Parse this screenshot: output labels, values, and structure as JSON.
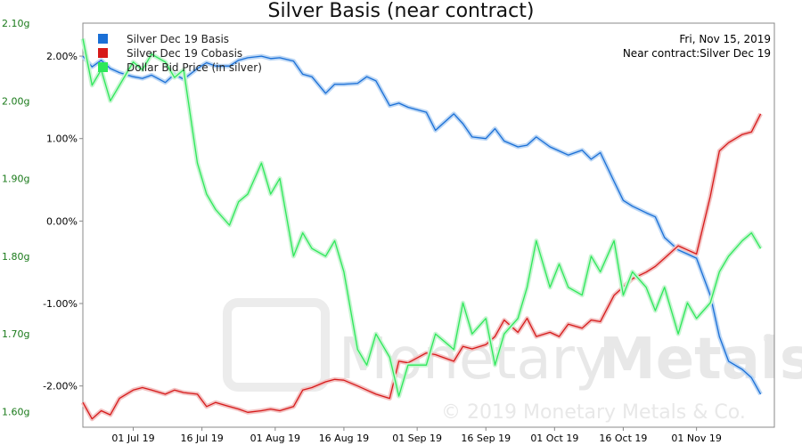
{
  "chart_data": {
    "type": "line",
    "title": "Silver Basis (near contract)",
    "annotation": [
      "Fri, Nov 15, 2019",
      "Near contract:Silver Dec 19"
    ],
    "watermark": {
      "brand": "MonetaryMetals",
      "brand_part1": "Monetary",
      "brand_part2": "Metals",
      "copyright": "© 2019 Monetary Metals & Co.",
      "registered": "®"
    },
    "x_axis": {
      "type": "date",
      "range": [
        "2019-06-20",
        "2019-11-18"
      ],
      "tick_labels": [
        "01 Jul 19",
        "16 Jul 19",
        "01 Aug 19",
        "16 Aug 19",
        "01 Sep 19",
        "16 Sep 19",
        "01 Oct 19",
        "16 Oct 19",
        "01 Nov 19"
      ],
      "tick_dates": [
        "2019-07-01",
        "2019-07-16",
        "2019-08-01",
        "2019-08-16",
        "2019-09-01",
        "2019-09-16",
        "2019-10-01",
        "2019-10-16",
        "2019-11-01"
      ]
    },
    "y_left": {
      "range": [
        -2.5,
        2.4
      ],
      "ticks": [
        2.0,
        1.0,
        0.0,
        -1.0,
        -2.0
      ],
      "tick_labels": [
        "2.00%",
        "1.00%",
        "0.00%",
        "-1.00%",
        "-2.00%"
      ]
    },
    "y_right": {
      "range": [
        1.58,
        2.1
      ],
      "ticks": [
        2.1,
        2.0,
        1.9,
        1.8,
        1.7,
        1.6
      ],
      "tick_labels": [
        "2.10g",
        "2.00g",
        "1.90g",
        "1.80g",
        "1.70g",
        "1.60g"
      ]
    },
    "grid": false,
    "legend_position": "top-left",
    "series": [
      {
        "name": "Silver Dec 19 Basis",
        "color": "#1a6fd6",
        "axis": "left",
        "x": [
          "2019-06-20",
          "2019-06-22",
          "2019-06-24",
          "2019-06-26",
          "2019-06-28",
          "2019-07-01",
          "2019-07-03",
          "2019-07-05",
          "2019-07-08",
          "2019-07-10",
          "2019-07-12",
          "2019-07-15",
          "2019-07-17",
          "2019-07-19",
          "2019-07-22",
          "2019-07-24",
          "2019-07-26",
          "2019-07-29",
          "2019-07-31",
          "2019-08-02",
          "2019-08-05",
          "2019-08-07",
          "2019-08-09",
          "2019-08-12",
          "2019-08-14",
          "2019-08-16",
          "2019-08-19",
          "2019-08-21",
          "2019-08-23",
          "2019-08-26",
          "2019-08-28",
          "2019-08-30",
          "2019-09-03",
          "2019-09-05",
          "2019-09-09",
          "2019-09-11",
          "2019-09-13",
          "2019-09-16",
          "2019-09-18",
          "2019-09-20",
          "2019-09-23",
          "2019-09-25",
          "2019-09-27",
          "2019-09-30",
          "2019-10-02",
          "2019-10-04",
          "2019-10-07",
          "2019-10-09",
          "2019-10-11",
          "2019-10-14",
          "2019-10-16",
          "2019-10-18",
          "2019-10-21",
          "2019-10-23",
          "2019-10-25",
          "2019-10-28",
          "2019-10-30",
          "2019-11-01",
          "2019-11-04",
          "2019-11-06",
          "2019-11-08",
          "2019-11-11",
          "2019-11-13",
          "2019-11-15"
        ],
        "values": [
          2.0,
          1.87,
          1.95,
          1.85,
          1.8,
          1.75,
          1.73,
          1.77,
          1.68,
          1.78,
          1.72,
          1.85,
          1.92,
          1.88,
          1.88,
          1.95,
          1.98,
          2.0,
          1.97,
          1.98,
          1.94,
          1.78,
          1.75,
          1.55,
          1.66,
          1.66,
          1.67,
          1.75,
          1.7,
          1.4,
          1.43,
          1.38,
          1.32,
          1.1,
          1.3,
          1.18,
          1.02,
          1.0,
          1.12,
          0.97,
          0.9,
          0.92,
          1.02,
          0.9,
          0.85,
          0.8,
          0.86,
          0.75,
          0.83,
          0.48,
          0.25,
          0.18,
          0.1,
          0.05,
          -0.2,
          -0.35,
          -0.4,
          -0.45,
          -0.9,
          -1.4,
          -1.7,
          -1.8,
          -1.9,
          -2.1
        ]
      },
      {
        "name": "Silver Dec 19 Cobasis",
        "color": "#d61a1a",
        "axis": "left",
        "x": [
          "2019-06-20",
          "2019-06-22",
          "2019-06-24",
          "2019-06-26",
          "2019-06-28",
          "2019-07-01",
          "2019-07-03",
          "2019-07-05",
          "2019-07-08",
          "2019-07-10",
          "2019-07-12",
          "2019-07-15",
          "2019-07-17",
          "2019-07-19",
          "2019-07-22",
          "2019-07-24",
          "2019-07-26",
          "2019-07-29",
          "2019-07-31",
          "2019-08-02",
          "2019-08-05",
          "2019-08-07",
          "2019-08-09",
          "2019-08-12",
          "2019-08-14",
          "2019-08-16",
          "2019-08-19",
          "2019-08-21",
          "2019-08-23",
          "2019-08-26",
          "2019-08-28",
          "2019-08-30",
          "2019-09-03",
          "2019-09-05",
          "2019-09-09",
          "2019-09-11",
          "2019-09-13",
          "2019-09-16",
          "2019-09-18",
          "2019-09-20",
          "2019-09-23",
          "2019-09-25",
          "2019-09-27",
          "2019-09-30",
          "2019-10-02",
          "2019-10-04",
          "2019-10-07",
          "2019-10-09",
          "2019-10-11",
          "2019-10-14",
          "2019-10-16",
          "2019-10-18",
          "2019-10-21",
          "2019-10-23",
          "2019-10-25",
          "2019-10-28",
          "2019-10-30",
          "2019-11-01",
          "2019-11-04",
          "2019-11-06",
          "2019-11-08",
          "2019-11-11",
          "2019-11-13",
          "2019-11-15"
        ],
        "values": [
          -2.2,
          -2.4,
          -2.3,
          -2.35,
          -2.15,
          -2.05,
          -2.02,
          -2.05,
          -2.1,
          -2.05,
          -2.08,
          -2.1,
          -2.25,
          -2.2,
          -2.25,
          -2.28,
          -2.32,
          -2.3,
          -2.28,
          -2.3,
          -2.25,
          -2.05,
          -2.02,
          -1.95,
          -1.92,
          -1.93,
          -2.0,
          -2.05,
          -2.1,
          -2.15,
          -1.7,
          -1.72,
          -1.6,
          -1.62,
          -1.7,
          -1.52,
          -1.55,
          -1.5,
          -1.4,
          -1.2,
          -1.35,
          -1.18,
          -1.4,
          -1.35,
          -1.4,
          -1.25,
          -1.3,
          -1.2,
          -1.22,
          -0.9,
          -0.8,
          -0.7,
          -0.62,
          -0.55,
          -0.45,
          -0.3,
          -0.35,
          -0.4,
          0.3,
          0.85,
          0.95,
          1.05,
          1.08,
          1.3
        ]
      },
      {
        "name": "Dollar Bid Price (in silver)",
        "color": "#2ee85a",
        "axis": "right",
        "x": [
          "2019-06-20",
          "2019-06-22",
          "2019-06-24",
          "2019-06-26",
          "2019-06-28",
          "2019-07-01",
          "2019-07-03",
          "2019-07-05",
          "2019-07-08",
          "2019-07-10",
          "2019-07-12",
          "2019-07-15",
          "2019-07-17",
          "2019-07-19",
          "2019-07-22",
          "2019-07-24",
          "2019-07-26",
          "2019-07-29",
          "2019-07-31",
          "2019-08-02",
          "2019-08-05",
          "2019-08-07",
          "2019-08-09",
          "2019-08-12",
          "2019-08-14",
          "2019-08-16",
          "2019-08-19",
          "2019-08-21",
          "2019-08-23",
          "2019-08-26",
          "2019-08-28",
          "2019-08-30",
          "2019-09-03",
          "2019-09-05",
          "2019-09-09",
          "2019-09-11",
          "2019-09-13",
          "2019-09-16",
          "2019-09-18",
          "2019-09-20",
          "2019-09-23",
          "2019-09-25",
          "2019-09-27",
          "2019-09-30",
          "2019-10-02",
          "2019-10-04",
          "2019-10-07",
          "2019-10-09",
          "2019-10-11",
          "2019-10-14",
          "2019-10-16",
          "2019-10-18",
          "2019-10-21",
          "2019-10-23",
          "2019-10-25",
          "2019-10-28",
          "2019-10-30",
          "2019-11-01",
          "2019-11-04",
          "2019-11-06",
          "2019-11-08",
          "2019-11-11",
          "2019-11-13",
          "2019-11-15"
        ],
        "values": [
          2.08,
          2.02,
          2.04,
          2.0,
          2.02,
          2.05,
          2.04,
          2.06,
          2.05,
          2.03,
          2.04,
          1.92,
          1.88,
          1.86,
          1.84,
          1.87,
          1.88,
          1.92,
          1.88,
          1.9,
          1.8,
          1.83,
          1.81,
          1.8,
          1.82,
          1.78,
          1.68,
          1.66,
          1.7,
          1.67,
          1.62,
          1.66,
          1.66,
          1.7,
          1.68,
          1.74,
          1.7,
          1.72,
          1.66,
          1.7,
          1.72,
          1.76,
          1.82,
          1.76,
          1.79,
          1.76,
          1.75,
          1.8,
          1.78,
          1.82,
          1.75,
          1.78,
          1.76,
          1.73,
          1.76,
          1.7,
          1.74,
          1.72,
          1.74,
          1.78,
          1.8,
          1.82,
          1.83,
          1.81
        ]
      }
    ]
  }
}
